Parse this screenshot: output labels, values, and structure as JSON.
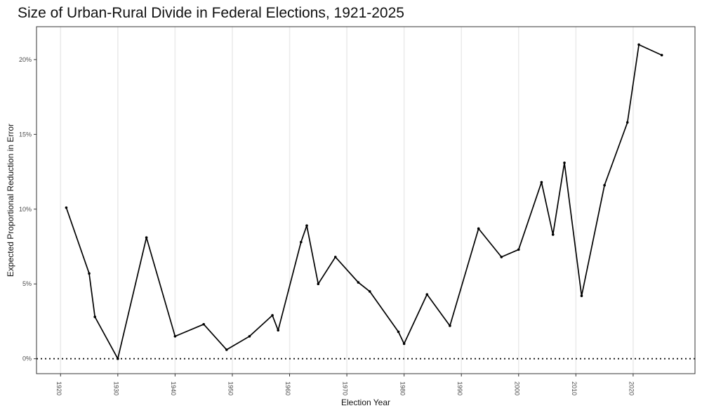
{
  "chart_data": {
    "type": "line",
    "title": "Size of Urban-Rural Divide in Federal Elections, 1921-2025",
    "xlabel": "Election Year",
    "ylabel": "Expected Proportional Reduction in Error",
    "xlim": [
      1915.8,
      2030.8
    ],
    "ylim": [
      -0.01,
      0.222
    ],
    "x_ticks": [
      1920,
      1930,
      1940,
      1950,
      1960,
      1970,
      1980,
      1990,
      2000,
      2010,
      2020
    ],
    "x_tick_labels": [
      "1920",
      "1930",
      "1940",
      "1950",
      "1960",
      "1970",
      "1980",
      "1990",
      "2000",
      "2010",
      "2020"
    ],
    "y_ticks": [
      0,
      0.05,
      0.1,
      0.15,
      0.2
    ],
    "y_tick_labels": [
      "0%",
      "5%",
      "10%",
      "15%",
      "20%"
    ],
    "reference_line": {
      "y": 0,
      "style": "dotted"
    },
    "grid": {
      "vertical_major": true,
      "horizontal": false
    },
    "series": [
      {
        "name": "Urban-Rural Divide",
        "x": [
          1921,
          1925,
          1926,
          1930,
          1935,
          1940,
          1945,
          1949,
          1953,
          1957,
          1958,
          1962,
          1963,
          1965,
          1968,
          1972,
          1974,
          1979,
          1980,
          1984,
          1988,
          1993,
          1997,
          2000,
          2004,
          2006,
          2008,
          2011,
          2015,
          2019,
          2021,
          2025
        ],
        "values": [
          0.101,
          0.057,
          0.028,
          0.0,
          0.081,
          0.015,
          0.023,
          0.006,
          0.015,
          0.029,
          0.019,
          0.078,
          0.089,
          0.05,
          0.068,
          0.051,
          0.045,
          0.018,
          0.01,
          0.043,
          0.022,
          0.087,
          0.068,
          0.073,
          0.118,
          0.083,
          0.131,
          0.042,
          0.116,
          0.158,
          0.21,
          0.203
        ]
      }
    ]
  }
}
